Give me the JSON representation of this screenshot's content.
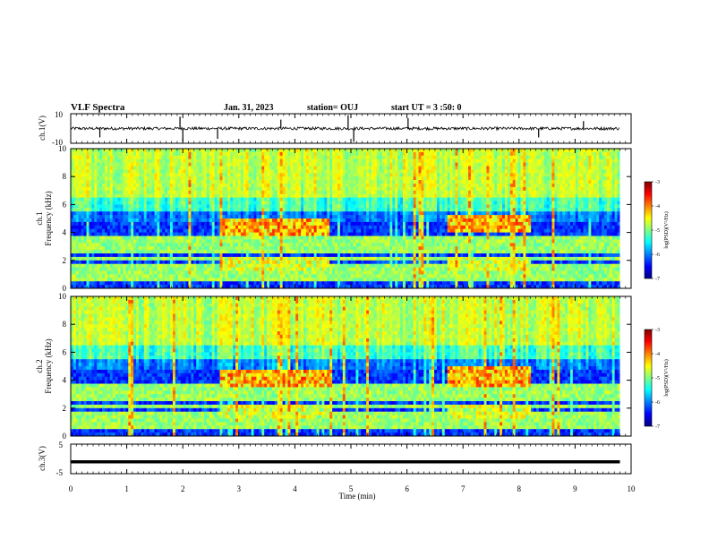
{
  "header": {
    "title": "VLF Spectra",
    "date": "Jan. 31, 2023",
    "station": "station= OUJ",
    "start": "start UT = 3 :50: 0"
  },
  "chart_data": [
    {
      "type": "line",
      "panel": "ch1-waveform",
      "ylabel": "ch.1(V)",
      "ylim": [
        -10,
        10
      ],
      "yticks": [
        "10",
        "-10"
      ],
      "xlim": [
        0,
        10
      ],
      "data_end_min": 9.8,
      "baseline": 0,
      "noise_amplitude": 1,
      "spikes": [
        {
          "x": 0.52,
          "y": -6
        },
        {
          "x": 1.95,
          "y": 8
        },
        {
          "x": 2.0,
          "y": -9
        },
        {
          "x": 2.62,
          "y": -7
        },
        {
          "x": 3.75,
          "y": 6
        },
        {
          "x": 4.95,
          "y": 9
        },
        {
          "x": 5.05,
          "y": -9
        },
        {
          "x": 6.02,
          "y": 7
        },
        {
          "x": 8.35,
          "y": -6
        },
        {
          "x": 9.15,
          "y": 5
        }
      ]
    },
    {
      "type": "heatmap",
      "panel": "ch1-spectrogram",
      "channel_label": "ch.1",
      "ylabel": "Frequency (kHz)",
      "ylim": [
        0,
        10
      ],
      "yticks": [
        "0",
        "2",
        "4",
        "6",
        "8",
        "10"
      ],
      "xlim": [
        0,
        10
      ],
      "data_end_min": 9.8,
      "bursts": [
        {
          "t0": 2.65,
          "t1": 4.6,
          "f": 4.4
        },
        {
          "t0": 6.7,
          "t1": 8.2,
          "f": 4.6
        }
      ],
      "colorbar": {
        "label": "log(PSD)(V²/Hz)",
        "range": [
          -7,
          -3
        ],
        "ticks": [
          "-3",
          "-4",
          "-5",
          "-6",
          "-7"
        ]
      }
    },
    {
      "type": "heatmap",
      "panel": "ch2-spectrogram",
      "channel_label": "ch.2",
      "ylabel": "Frequency (kHz)",
      "ylim": [
        0,
        10
      ],
      "yticks": [
        "0",
        "2",
        "4",
        "6",
        "8",
        "10"
      ],
      "xlim": [
        0,
        10
      ],
      "data_end_min": 9.8,
      "bursts": [
        {
          "t0": 2.65,
          "t1": 4.6,
          "f": 4.1
        },
        {
          "t0": 6.7,
          "t1": 8.2,
          "f": 4.2
        }
      ],
      "colorbar": {
        "label": "log(PSD)(V²/Hz)",
        "range": [
          -7,
          -3
        ],
        "ticks": [
          "-3",
          "-4",
          "-5",
          "-6",
          "-7"
        ]
      }
    },
    {
      "type": "line",
      "panel": "ch3-waveform",
      "ylabel": "ch.3(V)",
      "ylim": [
        -5,
        5
      ],
      "yticks": [
        "5",
        "-5"
      ],
      "xlim": [
        0,
        10
      ],
      "data_end_min": 9.8,
      "baseline": -1
    }
  ],
  "xaxis": {
    "label": "Time (min)",
    "ticks": [
      "0",
      "1",
      "2",
      "3",
      "4",
      "5",
      "6",
      "7",
      "8",
      "9",
      "10"
    ]
  },
  "colormap": [
    "#000080",
    "#0000ff",
    "#0080ff",
    "#00ffff",
    "#80ff80",
    "#ffff00",
    "#ff8000",
    "#ff0000",
    "#800000"
  ]
}
